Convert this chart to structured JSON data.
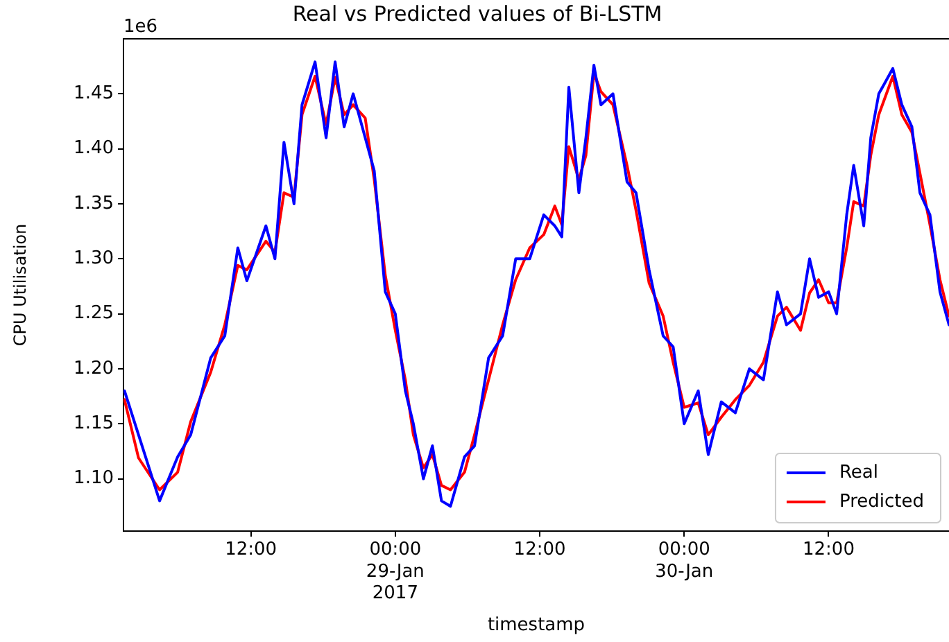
{
  "chart_data": {
    "type": "line",
    "title": "Real vs Predicted values of Bi-LSTM",
    "xlabel": "timestamp",
    "ylabel": "CPU Utilisation",
    "annotations": [
      "1e6"
    ],
    "x": [
      "2017-01-28T01:30",
      "2017-01-28T02:40",
      "2017-01-28T04:25",
      "2017-01-28T05:55",
      "2017-01-28T07:00",
      "2017-01-28T08:40",
      "2017-01-28T09:50",
      "2017-01-28T10:55",
      "2017-01-28T11:40",
      "2017-01-28T13:15",
      "2017-01-28T14:00",
      "2017-01-28T14:45",
      "2017-01-28T15:35",
      "2017-01-28T16:15",
      "2017-01-28T17:20",
      "2017-01-28T18:15",
      "2017-01-28T19:00",
      "2017-01-28T19:45",
      "2017-01-28T20:30",
      "2017-01-28T21:30",
      "2017-01-28T22:15",
      "2017-01-28T23:10",
      "2017-01-29T00:00",
      "2017-01-29T00:50",
      "2017-01-29T01:30",
      "2017-01-29T02:20",
      "2017-01-29T03:05",
      "2017-01-29T03:50",
      "2017-01-29T04:35",
      "2017-01-29T05:45",
      "2017-01-29T06:35",
      "2017-01-29T07:45",
      "2017-01-29T08:55",
      "2017-01-29T10:00",
      "2017-01-29T11:10",
      "2017-01-29T12:20",
      "2017-01-29T13:15",
      "2017-01-29T13:50",
      "2017-01-29T14:25",
      "2017-01-29T15:15",
      "2017-01-29T15:50",
      "2017-01-29T16:30",
      "2017-01-29T17:05",
      "2017-01-29T18:05",
      "2017-01-29T19:15",
      "2017-01-29T20:00",
      "2017-01-29T21:05",
      "2017-01-29T22:15",
      "2017-01-29T23:05",
      "2017-01-30T00:00",
      "2017-01-30T01:10",
      "2017-01-30T02:00",
      "2017-01-30T03:05",
      "2017-01-30T04:15",
      "2017-01-30T05:25",
      "2017-01-30T06:35",
      "2017-01-30T07:45",
      "2017-01-30T08:30",
      "2017-01-30T09:40",
      "2017-01-30T10:25",
      "2017-01-30T11:10",
      "2017-01-30T12:00",
      "2017-01-30T12:40",
      "2017-01-30T13:30",
      "2017-01-30T14:05",
      "2017-01-30T14:55",
      "2017-01-30T15:30",
      "2017-01-30T16:10",
      "2017-01-30T17:20",
      "2017-01-30T18:05",
      "2017-01-30T18:55",
      "2017-01-30T19:35",
      "2017-01-30T20:25",
      "2017-01-30T21:15",
      "2017-01-30T22:00"
    ],
    "series": [
      {
        "name": "Real",
        "color": "#0000ff",
        "values": [
          1.18,
          1.14,
          1.08,
          1.12,
          1.14,
          1.21,
          1.23,
          1.31,
          1.28,
          1.33,
          1.3,
          1.406,
          1.35,
          1.44,
          1.479,
          1.41,
          1.479,
          1.42,
          1.45,
          1.41,
          1.38,
          1.27,
          1.25,
          1.18,
          1.15,
          1.1,
          1.13,
          1.08,
          1.075,
          1.12,
          1.13,
          1.21,
          1.23,
          1.3,
          1.3,
          1.34,
          1.33,
          1.32,
          1.456,
          1.36,
          1.41,
          1.476,
          1.44,
          1.45,
          1.37,
          1.36,
          1.29,
          1.23,
          1.22,
          1.15,
          1.18,
          1.122,
          1.17,
          1.16,
          1.2,
          1.19,
          1.27,
          1.24,
          1.25,
          1.3,
          1.265,
          1.27,
          1.25,
          1.34,
          1.385,
          1.33,
          1.41,
          1.45,
          1.473,
          1.44,
          1.42,
          1.36,
          1.34,
          1.27,
          1.24
        ]
      },
      {
        "name": "Predicted",
        "color": "#ff0000",
        "values": [
          1.172,
          1.119,
          1.09,
          1.106,
          1.152,
          1.197,
          1.24,
          1.294,
          1.29,
          1.316,
          1.306,
          1.36,
          1.356,
          1.431,
          1.466,
          1.422,
          1.465,
          1.431,
          1.44,
          1.428,
          1.372,
          1.285,
          1.235,
          1.19,
          1.14,
          1.11,
          1.122,
          1.094,
          1.09,
          1.106,
          1.14,
          1.19,
          1.24,
          1.281,
          1.31,
          1.322,
          1.348,
          1.331,
          1.402,
          1.372,
          1.394,
          1.469,
          1.452,
          1.44,
          1.385,
          1.344,
          1.278,
          1.248,
          1.206,
          1.165,
          1.169,
          1.14,
          1.156,
          1.172,
          1.185,
          1.206,
          1.248,
          1.256,
          1.235,
          1.269,
          1.281,
          1.26,
          1.26,
          1.31,
          1.352,
          1.348,
          1.394,
          1.431,
          1.466,
          1.431,
          1.415,
          1.378,
          1.331,
          1.281,
          1.248
        ]
      }
    ],
    "xlim": [
      "2017-01-28T01:25",
      "2017-01-30T22:00"
    ],
    "xticks": [
      {
        "value": "2017-01-28T12:00",
        "label": "12:00"
      },
      {
        "value": "2017-01-29T00:00",
        "label": "00:00\n29-Jan\n2017"
      },
      {
        "value": "2017-01-29T12:00",
        "label": "12:00"
      },
      {
        "value": "2017-01-30T00:00",
        "label": "00:00\n30-Jan"
      },
      {
        "value": "2017-01-30T12:00",
        "label": "12:00"
      }
    ],
    "ylim": [
      1.0525,
      1.5
    ],
    "yticks": [
      {
        "value": 1.1,
        "label": "1.10"
      },
      {
        "value": 1.15,
        "label": "1.15"
      },
      {
        "value": 1.2,
        "label": "1.20"
      },
      {
        "value": 1.25,
        "label": "1.25"
      },
      {
        "value": 1.3,
        "label": "1.30"
      },
      {
        "value": 1.35,
        "label": "1.35"
      },
      {
        "value": 1.4,
        "label": "1.40"
      },
      {
        "value": 1.45,
        "label": "1.45"
      }
    ],
    "legend": "bottom right",
    "grid": false,
    "marker": "none",
    "line_style": "solid"
  }
}
